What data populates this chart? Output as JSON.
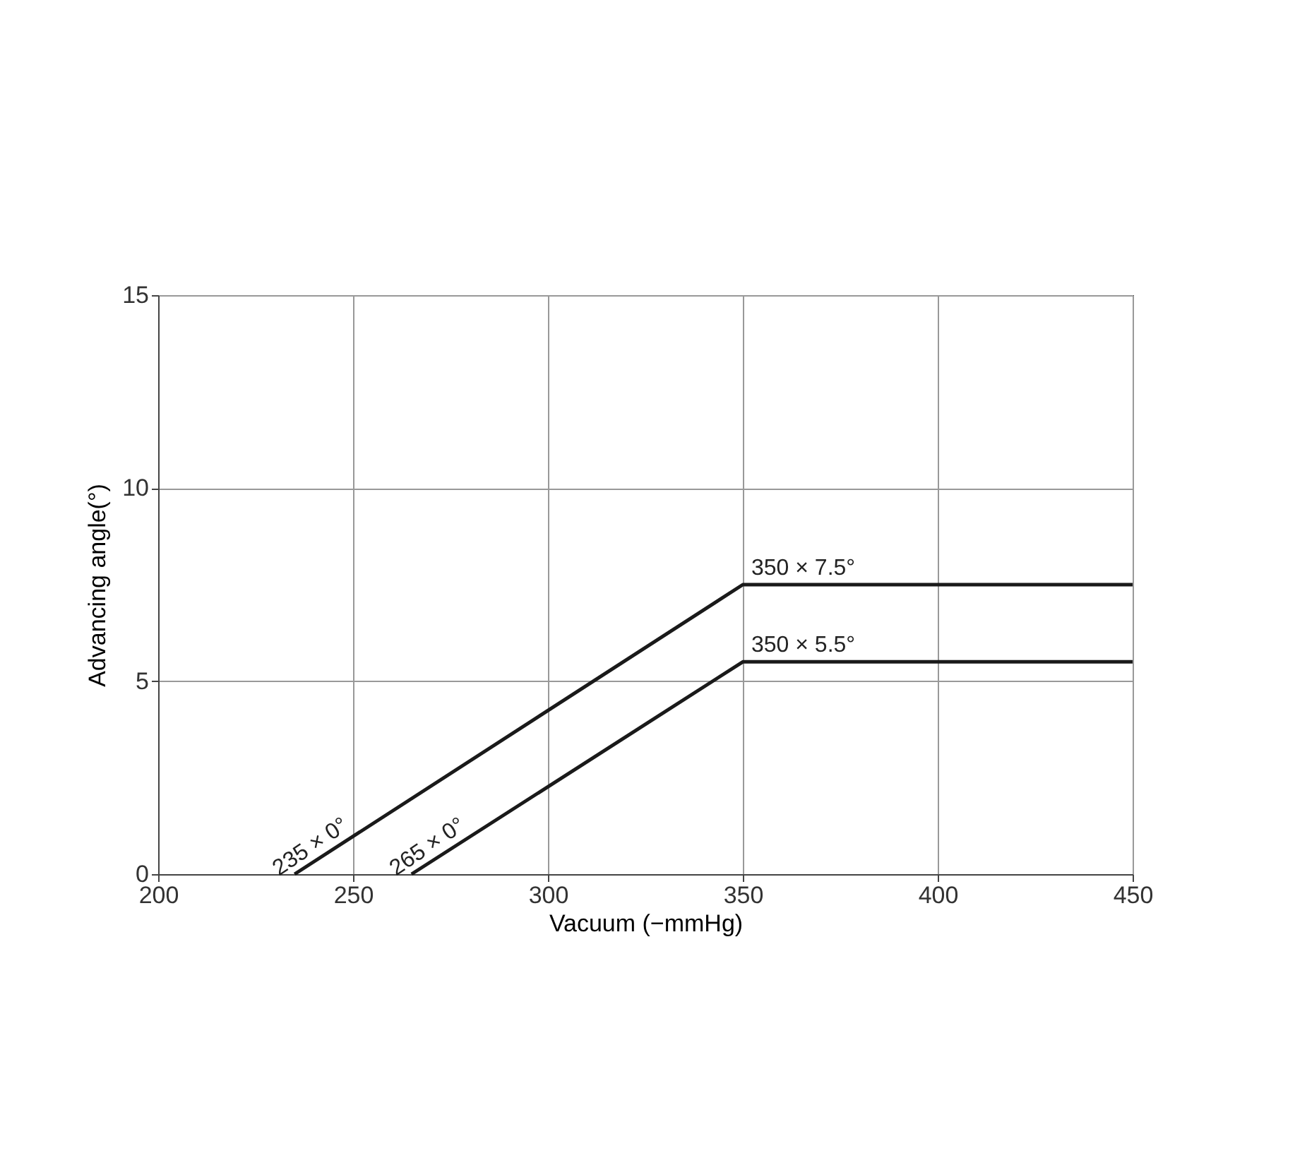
{
  "chart_data": {
    "type": "line",
    "xlabel": "Vacuum (−mmHg)",
    "ylabel": "Advancing angle(°)",
    "xlim": [
      200,
      450
    ],
    "xticks": [
      200,
      250,
      300,
      350,
      400,
      450
    ],
    "ylim": [
      0,
      15
    ],
    "yticks": [
      0,
      5,
      10,
      15
    ],
    "grid": true,
    "series": [
      {
        "x": [
          235,
          350,
          450
        ],
        "values": [
          0,
          7.5,
          7.5
        ],
        "color": "#1a1a1a"
      },
      {
        "x": [
          265,
          350,
          450
        ],
        "values": [
          0,
          5.5,
          5.5
        ],
        "color": "#1a1a1a"
      }
    ],
    "annotations": [
      {
        "text": "235 × 0°",
        "x": 235,
        "y": 0
      },
      {
        "text": "265 × 0°",
        "x": 265,
        "y": 0
      },
      {
        "text": "350 × 7.5°",
        "x": 350,
        "y": 7.5
      },
      {
        "text": "350 × 5.5°",
        "x": 350,
        "y": 5.5
      }
    ]
  }
}
